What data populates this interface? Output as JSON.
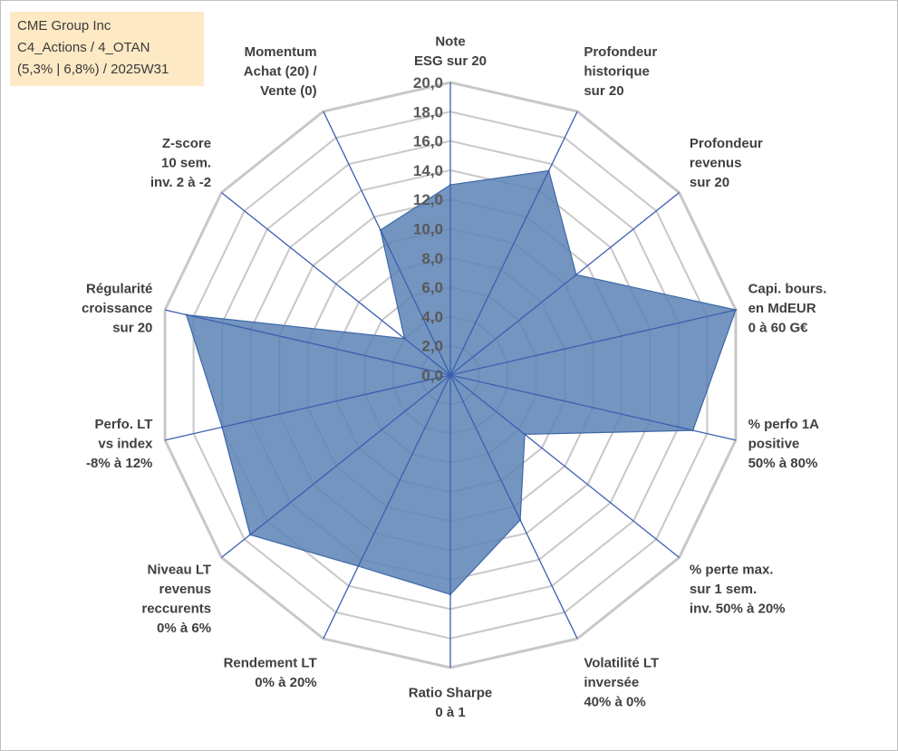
{
  "title_box": {
    "line1": "CME Group Inc",
    "line2": "C4_Actions / 4_OTAN",
    "line3": "(5,3% | 6,8%) / 2025W31"
  },
  "chart_data": {
    "type": "radar",
    "rlim": [
      0,
      20
    ],
    "tick_step": 2,
    "tick_labels": [
      "0,0",
      "2,0",
      "4,0",
      "6,0",
      "8,0",
      "10,0",
      "12,0",
      "14,0",
      "16,0",
      "18,0",
      "20,0"
    ],
    "grid": true,
    "axes": [
      {
        "label": [
          "Note",
          "ESG sur 20"
        ]
      },
      {
        "label": [
          "Profondeur",
          "historique",
          "sur 20"
        ]
      },
      {
        "label": [
          "Profondeur",
          "revenus",
          "sur 20"
        ]
      },
      {
        "label": [
          "Capi. bours.",
          "en MdEUR",
          "0 à 60 G€"
        ]
      },
      {
        "label": [
          "% perfo 1A",
          "positive",
          "50% à 80%"
        ]
      },
      {
        "label": [
          "% perte max.",
          "sur 1 sem.",
          "inv. 50% à 20%"
        ]
      },
      {
        "label": [
          "Volatilité LT",
          "inversée",
          "40% à 0%"
        ]
      },
      {
        "label": [
          "Ratio Sharpe",
          "0 à 1"
        ]
      },
      {
        "label": [
          "Rendement LT",
          "0% à 20%"
        ]
      },
      {
        "label": [
          "Niveau LT",
          "revenus",
          "reccurents",
          "0% à 6%"
        ]
      },
      {
        "label": [
          "Perfo. LT",
          "vs index",
          "-8% à 12%"
        ]
      },
      {
        "label": [
          "Régularité",
          "croissance",
          "sur 20"
        ]
      },
      {
        "label": [
          "Z-score",
          "10 sem.",
          "inv. 2 à -2"
        ]
      },
      {
        "label": [
          "Momentum",
          "Achat (20) /",
          "Vente (0)"
        ]
      }
    ],
    "series": [
      {
        "values": [
          13.0,
          15.5,
          11.0,
          20.0,
          17.0,
          6.5,
          11.0,
          15.0,
          14.5,
          17.5,
          16.0,
          18.5,
          4.0,
          11.0
        ],
        "color": "#5b82b5"
      }
    ],
    "colors": {
      "fill": "#5b82b5",
      "outline": "#3e68a8",
      "spokes": "#3b5fb0",
      "grid": "#c8c8c8",
      "tick_text": "#595959",
      "axis_label_text": "#404040"
    }
  }
}
